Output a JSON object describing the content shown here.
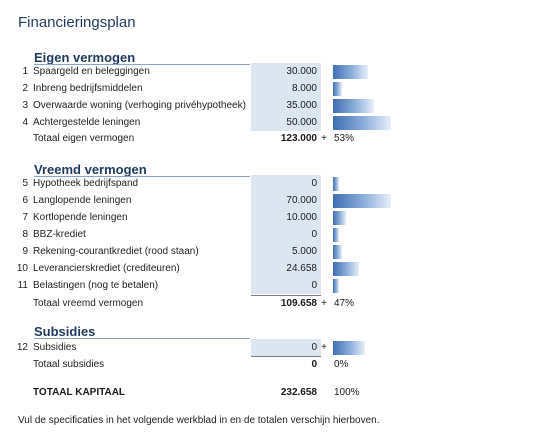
{
  "title": "Financieringsplan",
  "sections": {
    "eigen": {
      "title": "Eigen vermogen",
      "rows": [
        {
          "num": "1",
          "label": "Spaargeld en beleggingen",
          "value": "30.000",
          "bar": 0.6
        },
        {
          "num": "2",
          "label": "Inbreng bedrijfsmiddelen",
          "value": "8.000",
          "bar": 0.16
        },
        {
          "num": "3",
          "label": "Overwaarde woning (verhoging privéhypotheek)",
          "value": "35.000",
          "bar": 0.7
        },
        {
          "num": "4",
          "label": "Achtergestelde leningen",
          "value": "50.000",
          "bar": 1.0
        }
      ],
      "total_label": "Totaal eigen vermogen",
      "total_value": "123.000",
      "total_plus": "+",
      "total_pct": "53%"
    },
    "vreemd": {
      "title": "Vreemd vermogen",
      "rows": [
        {
          "num": "5",
          "label": "Hypotheek bedrijfspand",
          "value": "0",
          "bar": 0.1
        },
        {
          "num": "6",
          "label": "Langlopende leningen",
          "value": "70.000",
          "bar": 1.0
        },
        {
          "num": "7",
          "label": "Kortlopende leningen",
          "value": "10.000",
          "bar": 0.23
        },
        {
          "num": "8",
          "label": "BBZ-krediet",
          "value": "0",
          "bar": 0.1
        },
        {
          "num": "9",
          "label": "Rekening-courantkrediet (rood staan)",
          "value": "5.000",
          "bar": 0.16
        },
        {
          "num": "10",
          "label": "Leverancierskrediet (crediteuren)",
          "value": "24.658",
          "bar": 0.44
        },
        {
          "num": "11",
          "label": "Belastingen (nog te betalen)",
          "value": "0",
          "bar": 0.1
        }
      ],
      "total_label": "Totaal vreemd vermogen",
      "total_value": "109.658",
      "total_plus": "+",
      "total_pct": "47%"
    },
    "subsidies": {
      "title": "Subsidies",
      "rows": [
        {
          "num": "12",
          "label": "Subsidies",
          "value": "0",
          "plus": "+",
          "bar": 0.55
        }
      ],
      "total_label": "Totaal subsidies",
      "total_value": "0",
      "total_pct": "0%"
    }
  },
  "grand_total": {
    "label": "TOTAAL KAPITAAL",
    "value": "232.658",
    "pct": "100%"
  },
  "footer": "Vul de specificaties in het volgende werkblad in en de totalen verschijn hierboven."
}
